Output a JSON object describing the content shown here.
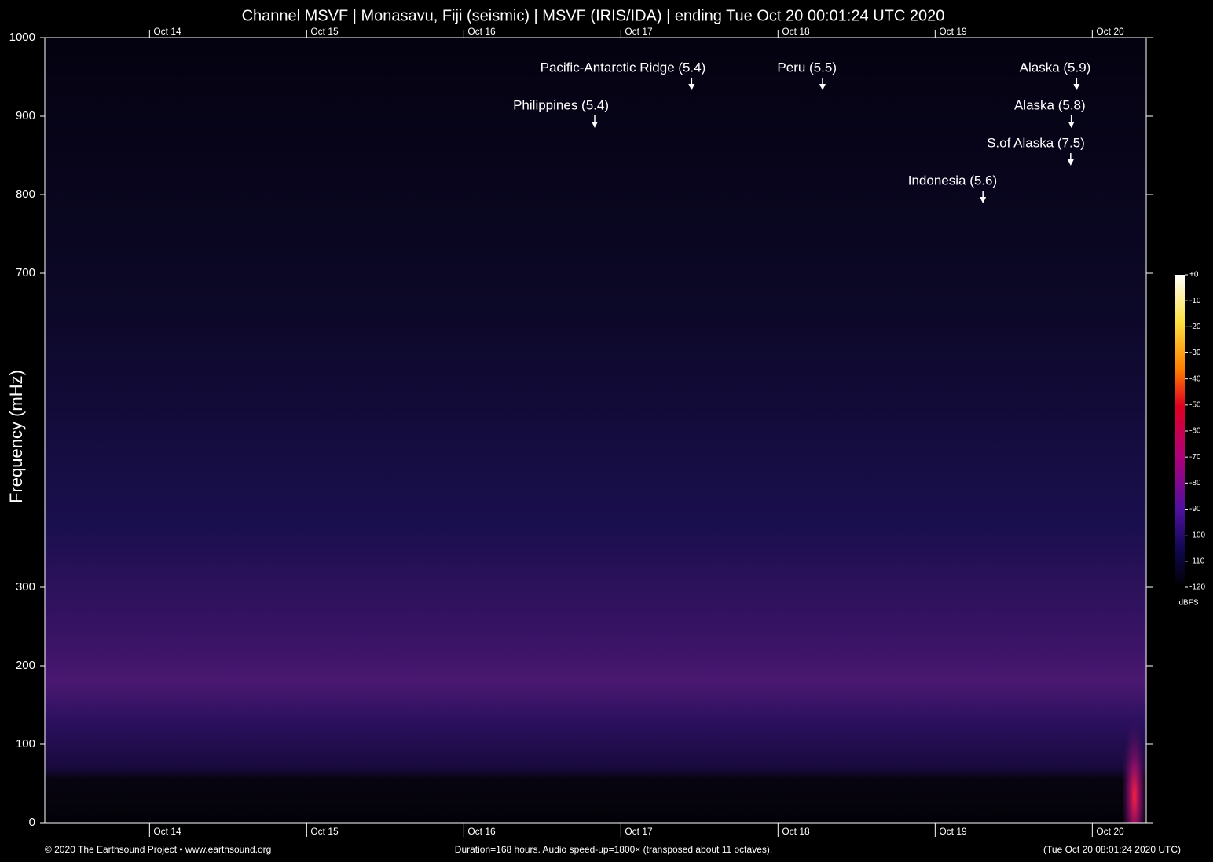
{
  "chart_data": {
    "type": "spectrogram",
    "title": "Channel MSVF | Monasavu, Fiji (seismic) | MSVF (IRIS/IDA) | ending Tue Oct 20 00:01:24 UTC 2020",
    "y_label": "Frequency (mHz)",
    "xlim": [
      0,
      168
    ],
    "xticks": [
      {
        "value": 16,
        "label": "Oct 14"
      },
      {
        "value": 40,
        "label": "Oct 15"
      },
      {
        "value": 64,
        "label": "Oct 16"
      },
      {
        "value": 88,
        "label": "Oct 17"
      },
      {
        "value": 112,
        "label": "Oct 18"
      },
      {
        "value": 136,
        "label": "Oct 19"
      },
      {
        "value": 160,
        "label": "Oct 20"
      }
    ],
    "ylim": [
      0,
      1000
    ],
    "yticks": [
      0,
      100,
      200,
      300,
      700,
      800,
      900,
      1000
    ],
    "annotations": [
      {
        "text": "Pacific-Antarctic Ridge (5.4)",
        "x": 98.8,
        "y": 933
      },
      {
        "text": "Peru (5.5)",
        "x": 118.8,
        "y": 933
      },
      {
        "text": "Alaska (5.9)",
        "x": 157.6,
        "y": 933
      },
      {
        "text": "Philippines (5.4)",
        "x": 84,
        "y": 885
      },
      {
        "text": "Alaska (5.8)",
        "x": 156.8,
        "y": 885
      },
      {
        "text": "S.of Alaska (7.5)",
        "x": 156.7,
        "y": 837
      },
      {
        "text": "Indonesia (5.6)",
        "x": 143.3,
        "y": 789
      }
    ],
    "colorbar": {
      "label": "dBFS",
      "lim": [
        -120,
        0
      ],
      "ticks": [
        {
          "value": 0,
          "label": "+0"
        },
        -10,
        -20,
        -30,
        -40,
        -50,
        -60,
        -70,
        -80,
        -90,
        -100,
        -110,
        -120
      ]
    },
    "footer": {
      "left": "© 2020 The Earthsound Project • www.earthsound.org",
      "center": "Duration=168 hours. Audio speed-up=1800× (transposed about 11 octaves).",
      "right": "(Tue Oct 20 08:01:24 2020 UTC)"
    }
  }
}
